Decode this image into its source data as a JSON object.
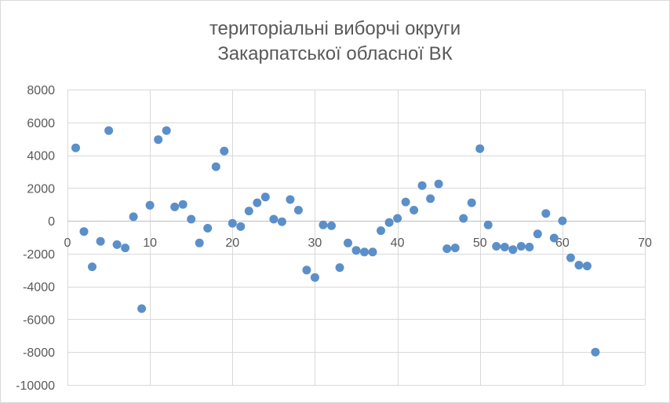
{
  "chart_data": {
    "type": "scatter",
    "title_lines": [
      "територіальні виборчі округи",
      "Закарпатської обласної ВК"
    ],
    "xlabel": "",
    "ylabel": "",
    "xlim": [
      0,
      70
    ],
    "ylim": [
      -10000,
      8000
    ],
    "x_ticks": [
      "0",
      "10",
      "20",
      "30",
      "40",
      "50",
      "60",
      "70"
    ],
    "y_ticks": [
      "8000",
      "6000",
      "4000",
      "2000",
      "0",
      "-2000",
      "-4000",
      "-6000",
      "-8000",
      "-10000"
    ],
    "grid": "horizontal and vertical",
    "legend": "none",
    "marker_color": "#5b8fc9",
    "points": [
      [
        1,
        4450
      ],
      [
        2,
        -650
      ],
      [
        3,
        -2800
      ],
      [
        4,
        -1250
      ],
      [
        5,
        5500
      ],
      [
        6,
        -1450
      ],
      [
        7,
        -1650
      ],
      [
        8,
        250
      ],
      [
        9,
        -5350
      ],
      [
        10,
        950
      ],
      [
        11,
        4950
      ],
      [
        12,
        5500
      ],
      [
        13,
        850
      ],
      [
        14,
        1000
      ],
      [
        15,
        100
      ],
      [
        16,
        -1350
      ],
      [
        17,
        -450
      ],
      [
        18,
        3300
      ],
      [
        19,
        4250
      ],
      [
        20,
        -150
      ],
      [
        21,
        -350
      ],
      [
        22,
        600
      ],
      [
        23,
        1100
      ],
      [
        24,
        1450
      ],
      [
        25,
        100
      ],
      [
        26,
        -50
      ],
      [
        27,
        1300
      ],
      [
        28,
        650
      ],
      [
        29,
        -3000
      ],
      [
        30,
        -3450
      ],
      [
        31,
        -250
      ],
      [
        32,
        -300
      ],
      [
        33,
        -2850
      ],
      [
        34,
        -1350
      ],
      [
        35,
        -1800
      ],
      [
        36,
        -1900
      ],
      [
        37,
        -1900
      ],
      [
        38,
        -600
      ],
      [
        39,
        -100
      ],
      [
        40,
        150
      ],
      [
        41,
        1150
      ],
      [
        42,
        650
      ],
      [
        43,
        2150
      ],
      [
        44,
        1350
      ],
      [
        45,
        2250
      ],
      [
        46,
        -1700
      ],
      [
        47,
        -1650
      ],
      [
        48,
        150
      ],
      [
        49,
        1100
      ],
      [
        50,
        4400
      ],
      [
        51,
        -250
      ],
      [
        52,
        -1550
      ],
      [
        53,
        -1600
      ],
      [
        54,
        -1750
      ],
      [
        55,
        -1550
      ],
      [
        56,
        -1600
      ],
      [
        57,
        -800
      ],
      [
        58,
        450
      ],
      [
        59,
        -1050
      ],
      [
        60,
        0
      ],
      [
        61,
        -2250
      ],
      [
        62,
        -2700
      ],
      [
        63,
        -2750
      ],
      [
        64,
        -8000
      ]
    ]
  }
}
